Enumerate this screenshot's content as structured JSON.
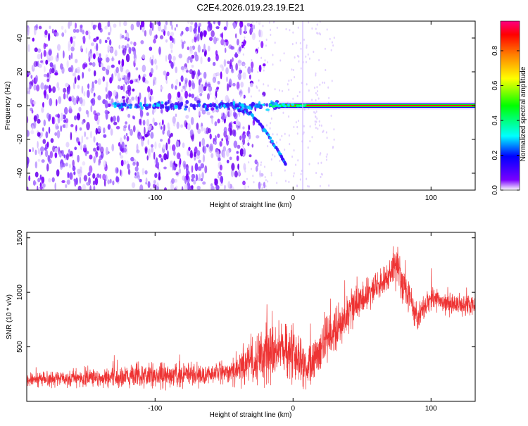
{
  "title": "C2E4.2026.019.23.19.E21",
  "colors": {
    "snr_line": "#ee3333",
    "axis": "#000000",
    "background": "#ffffff"
  },
  "chart_data": [
    {
      "type": "heatmap",
      "name": "spectrogram",
      "xlabel": "Height of straight line (km)",
      "ylabel": "Frequency (Hz)",
      "xlim": [
        -193,
        132
      ],
      "ylim": [
        -50,
        50
      ],
      "xticks": [
        -100,
        0,
        100
      ],
      "yticks": [
        -40,
        -20,
        0,
        20,
        40
      ],
      "colorbar": {
        "label": "Normalized spectral amplitude",
        "range": [
          0,
          0.97
        ],
        "ticks": [
          "0.0",
          "0.2",
          "0.4",
          "0.6",
          "0.8"
        ],
        "tick_values": [
          0.0,
          0.2,
          0.4,
          0.6,
          0.8
        ],
        "colormap": [
          "#ffffff",
          "#7a00ff",
          "#0000ff",
          "#00ffff",
          "#00ff00",
          "#ffff00",
          "#ff8000",
          "#ff0000",
          "#ff0080"
        ]
      },
      "features": {
        "carrier_frequency_hz": 0,
        "carrier_start_km": -10,
        "branch_points": [
          [
            -40,
            -2
          ],
          [
            -30,
            -5
          ],
          [
            -20,
            -15
          ],
          [
            -10,
            -28
          ],
          [
            -5,
            -35
          ]
        ],
        "noise_region_km": [
          -193,
          -40
        ]
      }
    },
    {
      "type": "line",
      "name": "snr",
      "xlabel": "Height of straight line (km)",
      "ylabel": "SNR (10 * v/v)",
      "xlim": [
        -193,
        132
      ],
      "ylim": [
        0,
        1550
      ],
      "xticks": [
        -100,
        0,
        100
      ],
      "yticks": [
        500,
        1000,
        1500
      ],
      "envelope": {
        "x": [
          -193,
          -150,
          -100,
          -60,
          -40,
          -20,
          0,
          5,
          10,
          20,
          30,
          40,
          50,
          60,
          70,
          75,
          80,
          90,
          100,
          110,
          120,
          132
        ],
        "mean": [
          200,
          215,
          235,
          250,
          300,
          450,
          450,
          350,
          300,
          500,
          650,
          800,
          950,
          1050,
          1150,
          1250,
          1050,
          780,
          950,
          900,
          880,
          870
        ],
        "spread": [
          90,
          110,
          150,
          130,
          180,
          350,
          300,
          280,
          250,
          300,
          280,
          250,
          230,
          200,
          200,
          260,
          230,
          180,
          130,
          130,
          120,
          120
        ]
      }
    }
  ]
}
